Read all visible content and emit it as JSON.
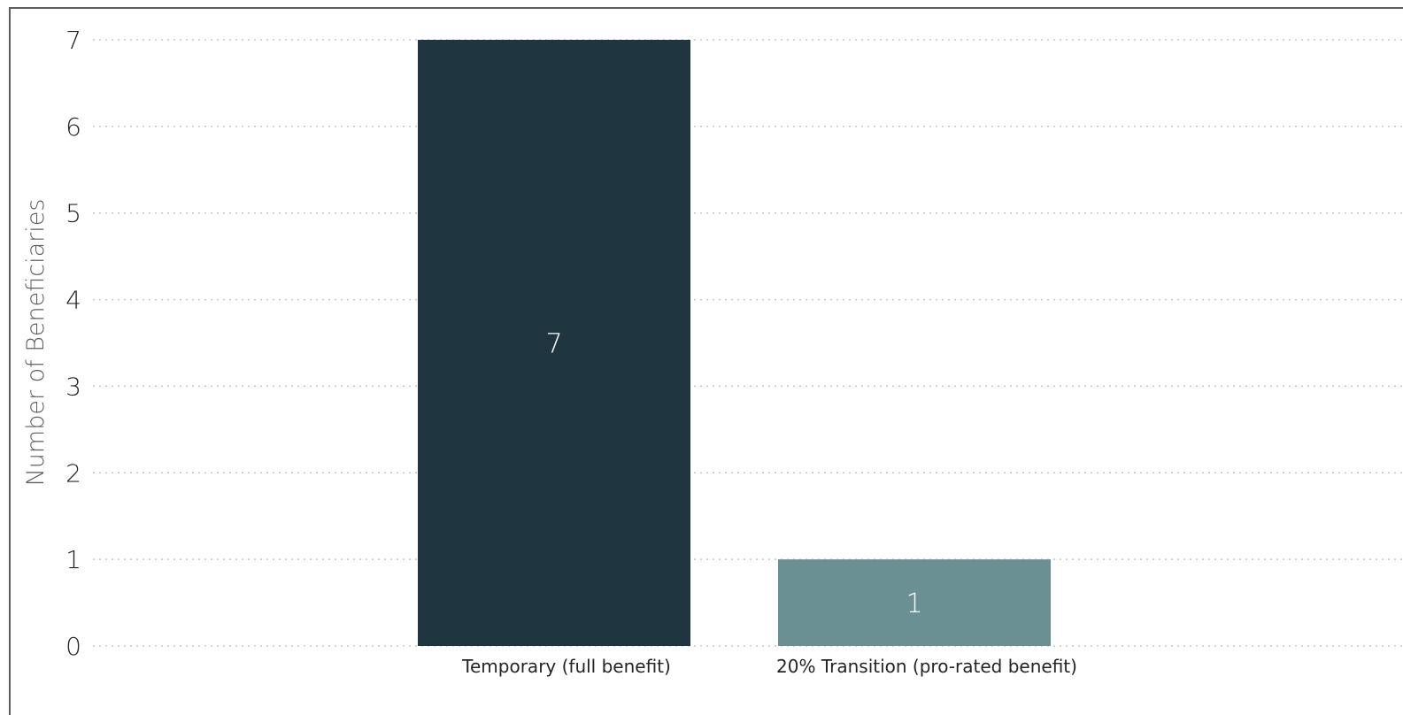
{
  "chart_data": {
    "type": "bar",
    "categories": [
      "Temporary (full benefit)",
      "20% Transition (pro-rated benefit)"
    ],
    "values": [
      7,
      1
    ],
    "data_labels": [
      "7",
      "1"
    ],
    "colors": [
      "#1f3640",
      "#6a9093"
    ],
    "title": "",
    "xlabel": "",
    "ylabel": "Number of Beneficiaries",
    "ylim": [
      0,
      7
    ],
    "yticks": [
      0,
      1,
      2,
      3,
      4,
      5,
      6,
      7
    ],
    "grid": true
  }
}
